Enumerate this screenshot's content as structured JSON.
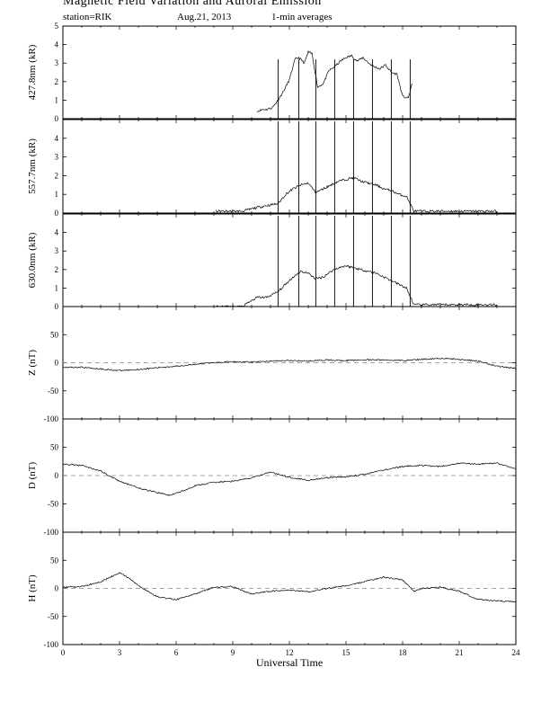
{
  "header": {
    "title": "Magnetic Field Variation and Auroral Emission",
    "station": "station=RIK",
    "date": "Aug.21, 2013",
    "averaging": "1-min averages"
  },
  "chart_data": [
    {
      "type": "line",
      "ylabel": "427.8nm (kR)",
      "ylim": [
        0,
        5
      ],
      "yticks": [
        "0",
        "1",
        "2",
        "3",
        "4",
        "5"
      ],
      "grid": false,
      "series": [
        {
          "x": [
            10.3,
            10.6,
            10.8,
            11.1,
            11.4,
            11.7,
            12.0,
            12.3,
            12.5,
            12.8,
            13.0,
            13.2,
            13.5,
            13.8,
            14.1,
            14.4,
            14.7,
            15.0,
            15.3,
            15.6,
            15.9,
            16.2,
            16.5,
            16.8,
            17.1,
            17.4,
            17.7,
            18.0,
            18.3,
            18.5
          ],
          "y": [
            0.4,
            0.5,
            0.5,
            0.6,
            1.0,
            1.5,
            2.1,
            3.2,
            3.3,
            3.0,
            3.6,
            3.5,
            1.7,
            1.9,
            2.6,
            2.8,
            3.1,
            3.3,
            3.4,
            3.1,
            3.3,
            3.0,
            2.8,
            2.7,
            2.9,
            2.5,
            2.4,
            1.2,
            1.1,
            1.9
          ]
        }
      ],
      "spikes": [
        11.4,
        12.5,
        13.4,
        14.4,
        15.4,
        16.4,
        17.4,
        18.4
      ]
    },
    {
      "type": "line",
      "ylabel": "557.7nm (kR)",
      "ylim": [
        0,
        5
      ],
      "yticks": [
        "0",
        "1",
        "2",
        "3",
        "4"
      ],
      "grid": false,
      "series": [
        {
          "x": [
            8.1,
            9.5,
            10.3,
            10.8,
            11.4,
            11.8,
            12.2,
            12.6,
            13.0,
            13.4,
            13.8,
            14.2,
            14.6,
            15.0,
            15.4,
            15.8,
            16.2,
            16.6,
            17.0,
            17.4,
            17.8,
            18.2,
            18.6,
            20.0,
            21.5,
            23.0
          ],
          "y": [
            0.1,
            0.1,
            0.3,
            0.4,
            0.5,
            1.0,
            1.3,
            1.5,
            1.6,
            1.1,
            1.3,
            1.5,
            1.7,
            1.8,
            1.9,
            1.7,
            1.6,
            1.5,
            1.3,
            1.2,
            1.0,
            0.9,
            0.1,
            0.1,
            0.1,
            0.1
          ]
        }
      ],
      "spikes": [
        11.4,
        12.5,
        13.4,
        14.4,
        15.4,
        16.4,
        17.4,
        18.4
      ]
    },
    {
      "type": "line",
      "ylabel": "630.0nm (kR)",
      "ylim": [
        0,
        5
      ],
      "yticks": [
        "0",
        "1",
        "2",
        "3",
        "4"
      ],
      "grid": false,
      "series": [
        {
          "x": [
            8.1,
            9.5,
            10.3,
            10.8,
            11.4,
            11.8,
            12.2,
            12.6,
            13.0,
            13.4,
            13.8,
            14.2,
            14.6,
            15.0,
            15.4,
            15.8,
            16.2,
            16.6,
            17.0,
            17.4,
            17.8,
            18.2,
            18.6,
            20.0,
            21.5,
            23.0
          ],
          "y": [
            0.0,
            0.0,
            0.5,
            0.5,
            0.8,
            1.2,
            1.6,
            1.9,
            1.8,
            1.5,
            1.6,
            1.9,
            2.1,
            2.2,
            2.1,
            2.0,
            1.9,
            1.8,
            1.6,
            1.4,
            1.2,
            1.0,
            0.1,
            0.1,
            0.1,
            0.1
          ]
        }
      ],
      "spikes": [
        11.4,
        12.5,
        13.4,
        14.4,
        15.4,
        16.4,
        17.4,
        18.4
      ]
    },
    {
      "type": "line",
      "ylabel": "Z (nT)",
      "ylim": [
        -100,
        100
      ],
      "yticks": [
        "-100",
        "-50",
        "0",
        "50"
      ],
      "zero_line": "dashed",
      "series": [
        {
          "x": [
            0,
            1,
            2,
            3,
            4,
            5,
            6,
            7,
            8,
            9,
            10,
            11,
            12,
            13,
            14,
            15,
            16,
            17,
            18,
            19,
            20,
            21,
            22,
            23,
            24
          ],
          "y": [
            -8,
            -8,
            -11,
            -14,
            -12,
            -9,
            -6,
            -3,
            0,
            2,
            1,
            3,
            4,
            3,
            5,
            4,
            5,
            5,
            4,
            6,
            8,
            6,
            3,
            -6,
            -10
          ]
        }
      ]
    },
    {
      "type": "line",
      "ylabel": "D (nT)",
      "ylim": [
        -100,
        100
      ],
      "yticks": [
        "-100",
        "-50",
        "0",
        "50"
      ],
      "zero_line": "dashed",
      "series": [
        {
          "x": [
            0,
            1,
            2,
            3,
            4,
            5,
            5.7,
            6.5,
            7,
            8,
            9,
            10,
            11,
            12,
            13,
            14,
            15,
            16,
            17,
            18,
            19,
            20,
            21,
            22,
            23,
            24
          ],
          "y": [
            20,
            18,
            8,
            -10,
            -22,
            -30,
            -35,
            -25,
            -18,
            -12,
            -10,
            -4,
            6,
            -3,
            -8,
            -4,
            -2,
            2,
            10,
            16,
            18,
            16,
            22,
            20,
            22,
            12
          ]
        }
      ]
    },
    {
      "type": "line",
      "ylabel": "H (nT)",
      "ylim": [
        -100,
        100
      ],
      "yticks": [
        "-100",
        "-50",
        "0",
        "50"
      ],
      "zero_line": "dashed",
      "xlabel": "Universal Time",
      "xticks": [
        "0",
        "3",
        "6",
        "9",
        "12",
        "15",
        "18",
        "21",
        "24"
      ],
      "series": [
        {
          "x": [
            0,
            1,
            2,
            3,
            3.5,
            4,
            5,
            6,
            7,
            8,
            9,
            10,
            11,
            12,
            13,
            14,
            15,
            16,
            17,
            18,
            18.6,
            19,
            20,
            21,
            22,
            23,
            24
          ],
          "y": [
            2,
            3,
            12,
            28,
            18,
            5,
            -15,
            -20,
            -10,
            2,
            3,
            -10,
            -5,
            -3,
            -6,
            0,
            5,
            12,
            20,
            15,
            -5,
            0,
            2,
            -5,
            -20,
            -22,
            -24
          ]
        }
      ]
    }
  ]
}
